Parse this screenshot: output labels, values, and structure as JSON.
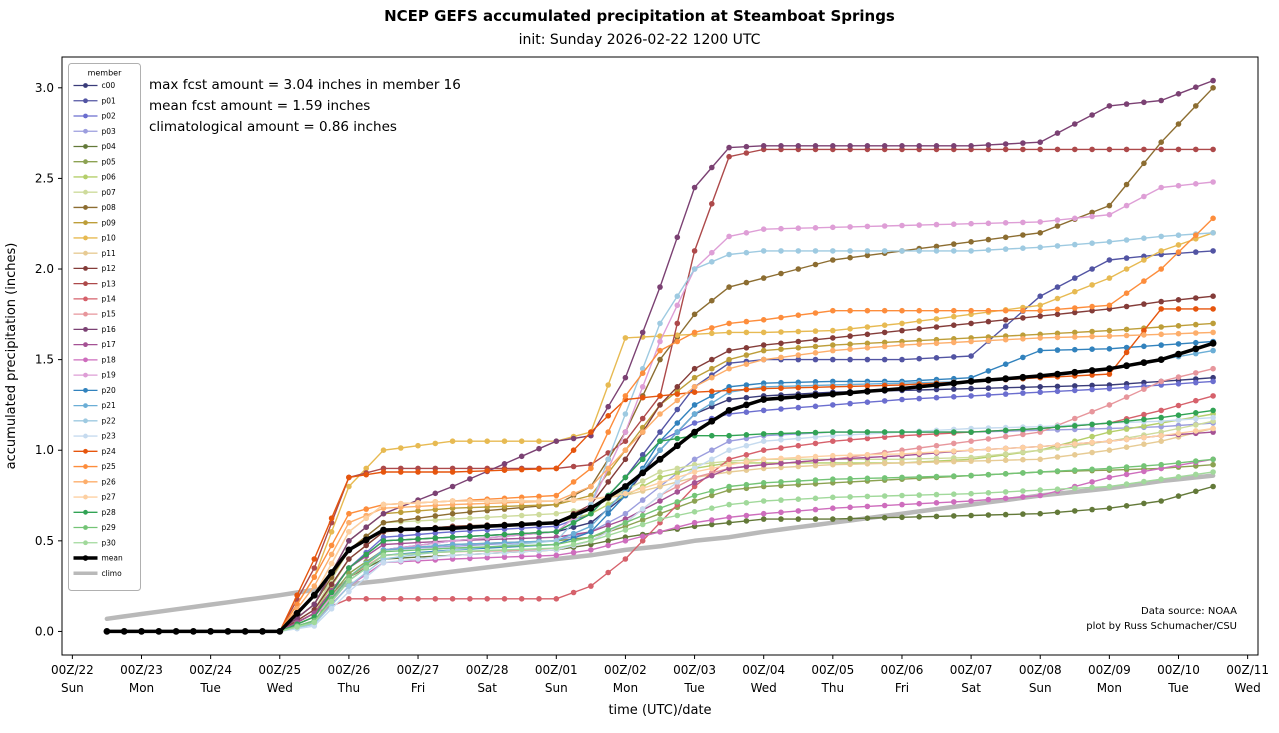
{
  "title": "NCEP GEFS accumulated precipitation at Steamboat Springs",
  "subtitle": "init: Sunday 2026-02-22 1200 UTC",
  "annotations": {
    "max": "max fcst amount = 3.04 inches in member 16",
    "mean": "mean fcst amount = 1.59 inches",
    "climo": "climatological amount = 0.86 inches"
  },
  "source": {
    "line1": "Data source: NOAA",
    "line2": "plot by Russ Schumacher/CSU"
  },
  "chart_data": {
    "type": "line",
    "title": "NCEP GEFS accumulated precipitation at Steamboat Springs",
    "xlabel": "time (UTC)/date",
    "ylabel": "accumulated precipitation (inches)",
    "legend_title": "member",
    "legend_position": "upper left",
    "grid": false,
    "x_unit": "days since 2026-02-22 00Z",
    "xlim": [
      -0.15,
      17.15
    ],
    "ylim": [
      -0.13,
      3.17
    ],
    "y_ticks": [
      0.0,
      0.5,
      1.0,
      1.5,
      2.0,
      2.5,
      3.0
    ],
    "x_ticks": [
      {
        "t": 0,
        "label": "00Z/22",
        "day": "Sun"
      },
      {
        "t": 1,
        "label": "00Z/23",
        "day": "Mon"
      },
      {
        "t": 2,
        "label": "00Z/24",
        "day": "Tue"
      },
      {
        "t": 3,
        "label": "00Z/25",
        "day": "Wed"
      },
      {
        "t": 4,
        "label": "00Z/26",
        "day": "Thu"
      },
      {
        "t": 5,
        "label": "00Z/27",
        "day": "Fri"
      },
      {
        "t": 6,
        "label": "00Z/28",
        "day": "Sat"
      },
      {
        "t": 7,
        "label": "00Z/01",
        "day": "Sun"
      },
      {
        "t": 8,
        "label": "00Z/02",
        "day": "Mon"
      },
      {
        "t": 9,
        "label": "00Z/03",
        "day": "Tue"
      },
      {
        "t": 10,
        "label": "00Z/04",
        "day": "Wed"
      },
      {
        "t": 11,
        "label": "00Z/05",
        "day": "Thu"
      },
      {
        "t": 12,
        "label": "00Z/06",
        "day": "Fri"
      },
      {
        "t": 13,
        "label": "00Z/07",
        "day": "Sat"
      },
      {
        "t": 14,
        "label": "00Z/08",
        "day": "Sun"
      },
      {
        "t": 15,
        "label": "00Z/09",
        "day": "Mon"
      },
      {
        "t": 16,
        "label": "00Z/10",
        "day": "Tue"
      },
      {
        "t": 17,
        "label": "00Z/11",
        "day": "Wed"
      }
    ],
    "marker_interval_days": 0.25,
    "breakpoint_times": [
      0.5,
      3,
      3.5,
      4,
      4.5,
      5.5,
      7,
      7.5,
      8,
      8.5,
      9,
      9.5,
      10,
      11,
      12,
      13,
      14,
      15,
      15.75,
      16.5
    ],
    "series": [
      {
        "name": "c00",
        "color": "#393b79",
        "values": [
          0,
          0,
          0.1,
          0.35,
          0.5,
          0.52,
          0.55,
          0.6,
          0.75,
          1.0,
          1.2,
          1.28,
          1.3,
          1.32,
          1.33,
          1.34,
          1.35,
          1.36,
          1.38,
          1.4
        ]
      },
      {
        "name": "p01",
        "color": "#5254a3",
        "values": [
          0,
          0,
          0.05,
          0.3,
          0.45,
          0.5,
          0.55,
          0.65,
          0.85,
          1.1,
          1.35,
          1.48,
          1.5,
          1.5,
          1.5,
          1.52,
          1.85,
          2.05,
          2.08,
          2.1
        ]
      },
      {
        "name": "p02",
        "color": "#6b6ecf",
        "values": [
          0,
          0,
          0.08,
          0.35,
          0.52,
          0.55,
          0.58,
          0.65,
          0.85,
          1.05,
          1.15,
          1.2,
          1.22,
          1.25,
          1.28,
          1.3,
          1.32,
          1.34,
          1.36,
          1.38
        ]
      },
      {
        "name": "p03",
        "color": "#9c9ede",
        "values": [
          0,
          0,
          0.05,
          0.3,
          0.45,
          0.47,
          0.5,
          0.55,
          0.65,
          0.8,
          0.95,
          1.05,
          1.08,
          1.1,
          1.1,
          1.1,
          1.11,
          1.12,
          1.13,
          1.15
        ]
      },
      {
        "name": "p04",
        "color": "#637939",
        "values": [
          0,
          0,
          0.1,
          0.3,
          0.4,
          0.42,
          0.45,
          0.48,
          0.52,
          0.55,
          0.58,
          0.6,
          0.62,
          0.62,
          0.63,
          0.64,
          0.65,
          0.68,
          0.72,
          0.8
        ]
      },
      {
        "name": "p05",
        "color": "#8ca252",
        "values": [
          0,
          0,
          0.08,
          0.32,
          0.45,
          0.48,
          0.5,
          0.52,
          0.58,
          0.65,
          0.72,
          0.78,
          0.8,
          0.82,
          0.84,
          0.86,
          0.88,
          0.89,
          0.9,
          0.92
        ]
      },
      {
        "name": "p06",
        "color": "#b5cf6b",
        "values": [
          0,
          0,
          0.1,
          0.4,
          0.55,
          0.58,
          0.6,
          0.65,
          0.75,
          0.85,
          0.9,
          0.93,
          0.93,
          0.93,
          0.93,
          0.95,
          1.0,
          1.1,
          1.15,
          1.2
        ]
      },
      {
        "name": "p07",
        "color": "#cedb9c",
        "values": [
          0,
          0,
          0.12,
          0.45,
          0.6,
          0.62,
          0.65,
          0.68,
          0.78,
          0.88,
          0.92,
          0.94,
          0.95,
          0.95,
          0.95,
          0.96,
          1.0,
          1.05,
          1.1,
          1.16
        ]
      },
      {
        "name": "p08",
        "color": "#8c6d31",
        "values": [
          0,
          0,
          0.15,
          0.45,
          0.6,
          0.65,
          0.7,
          0.8,
          1.1,
          1.5,
          1.75,
          1.9,
          1.95,
          2.05,
          2.1,
          2.15,
          2.2,
          2.35,
          2.7,
          3.0
        ]
      },
      {
        "name": "p09",
        "color": "#bd9e39",
        "values": [
          0,
          0,
          0.15,
          0.5,
          0.65,
          0.68,
          0.7,
          0.75,
          1.0,
          1.25,
          1.4,
          1.5,
          1.55,
          1.58,
          1.6,
          1.62,
          1.64,
          1.66,
          1.68,
          1.7
        ]
      },
      {
        "name": "p10",
        "color": "#e7ba52",
        "values": [
          0,
          0,
          0.3,
          0.8,
          1.0,
          1.05,
          1.05,
          1.1,
          1.62,
          1.63,
          1.64,
          1.65,
          1.65,
          1.66,
          1.7,
          1.75,
          1.8,
          1.95,
          2.1,
          2.2
        ]
      },
      {
        "name": "p11",
        "color": "#e7cb94",
        "values": [
          0,
          0,
          0.2,
          0.55,
          0.7,
          0.72,
          0.72,
          0.73,
          0.75,
          0.8,
          0.85,
          0.88,
          0.9,
          0.92,
          0.93,
          0.94,
          0.95,
          1.0,
          1.05,
          1.12
        ]
      },
      {
        "name": "p12",
        "color": "#843c39",
        "values": [
          0,
          0,
          0.12,
          0.4,
          0.55,
          0.58,
          0.6,
          0.7,
          0.95,
          1.25,
          1.45,
          1.55,
          1.58,
          1.62,
          1.66,
          1.7,
          1.74,
          1.78,
          1.82,
          1.85
        ]
      },
      {
        "name": "p13",
        "color": "#ad494a",
        "values": [
          0,
          0,
          0.35,
          0.85,
          0.9,
          0.9,
          0.9,
          0.92,
          1.05,
          1.3,
          2.1,
          2.62,
          2.66,
          2.66,
          2.66,
          2.66,
          2.66,
          2.66,
          2.66,
          2.66
        ]
      },
      {
        "name": "p14",
        "color": "#d6616b",
        "values": [
          0,
          0,
          0.1,
          0.18,
          0.18,
          0.18,
          0.18,
          0.25,
          0.4,
          0.6,
          0.8,
          0.95,
          1.0,
          1.05,
          1.08,
          1.1,
          1.12,
          1.15,
          1.22,
          1.3
        ]
      },
      {
        "name": "p15",
        "color": "#e7969c",
        "values": [
          0,
          0,
          0.08,
          0.3,
          0.42,
          0.44,
          0.45,
          0.5,
          0.6,
          0.75,
          0.85,
          0.9,
          0.92,
          0.95,
          1.0,
          1.05,
          1.1,
          1.25,
          1.38,
          1.45
        ]
      },
      {
        "name": "p16",
        "color": "#7b4173",
        "values": [
          0,
          0,
          0.15,
          0.5,
          0.65,
          0.8,
          1.05,
          1.08,
          1.4,
          1.9,
          2.45,
          2.67,
          2.68,
          2.68,
          2.68,
          2.68,
          2.7,
          2.9,
          2.93,
          3.04
        ]
      },
      {
        "name": "p17",
        "color": "#a55194",
        "values": [
          0,
          0,
          0.1,
          0.35,
          0.48,
          0.5,
          0.52,
          0.55,
          0.62,
          0.72,
          0.82,
          0.9,
          0.92,
          0.95,
          0.97,
          1.0,
          1.02,
          1.05,
          1.08,
          1.1
        ]
      },
      {
        "name": "p18",
        "color": "#ce6dbd",
        "values": [
          0,
          0,
          0.05,
          0.25,
          0.38,
          0.4,
          0.42,
          0.45,
          0.5,
          0.55,
          0.6,
          0.63,
          0.65,
          0.68,
          0.7,
          0.72,
          0.75,
          0.85,
          0.9,
          0.95
        ]
      },
      {
        "name": "p19",
        "color": "#de9ed6",
        "values": [
          0,
          0,
          0.08,
          0.3,
          0.45,
          0.5,
          0.55,
          0.7,
          1.1,
          1.6,
          2.0,
          2.18,
          2.22,
          2.23,
          2.24,
          2.25,
          2.26,
          2.3,
          2.45,
          2.48
        ]
      },
      {
        "name": "p20",
        "color": "#3182bd",
        "values": [
          0,
          0,
          0.05,
          0.28,
          0.42,
          0.45,
          0.48,
          0.55,
          0.75,
          1.05,
          1.25,
          1.35,
          1.37,
          1.38,
          1.38,
          1.4,
          1.55,
          1.56,
          1.58,
          1.6
        ]
      },
      {
        "name": "p21",
        "color": "#6baed6",
        "values": [
          0,
          0,
          0.06,
          0.3,
          0.45,
          0.48,
          0.5,
          0.58,
          0.78,
          1.0,
          1.2,
          1.32,
          1.35,
          1.36,
          1.37,
          1.38,
          1.4,
          1.45,
          1.5,
          1.55
        ]
      },
      {
        "name": "p22",
        "color": "#9ecae1",
        "values": [
          0,
          0,
          0.04,
          0.25,
          0.4,
          0.45,
          0.5,
          0.7,
          1.2,
          1.7,
          2.0,
          2.08,
          2.1,
          2.1,
          2.1,
          2.1,
          2.12,
          2.15,
          2.18,
          2.2
        ]
      },
      {
        "name": "p23",
        "color": "#c6dbef",
        "values": [
          0,
          0,
          0.03,
          0.22,
          0.38,
          0.42,
          0.45,
          0.5,
          0.6,
          0.75,
          0.9,
          1.0,
          1.05,
          1.08,
          1.1,
          1.12,
          1.13,
          1.15,
          1.16,
          1.18
        ]
      },
      {
        "name": "p24",
        "color": "#e6550d",
        "values": [
          0,
          0,
          0.4,
          0.85,
          0.88,
          0.88,
          0.9,
          1.1,
          1.28,
          1.3,
          1.32,
          1.33,
          1.34,
          1.35,
          1.36,
          1.38,
          1.4,
          1.42,
          1.78,
          1.78
        ]
      },
      {
        "name": "p25",
        "color": "#fd8d3c",
        "values": [
          0,
          0,
          0.3,
          0.65,
          0.7,
          0.72,
          0.75,
          0.9,
          1.3,
          1.55,
          1.65,
          1.7,
          1.72,
          1.77,
          1.77,
          1.77,
          1.77,
          1.8,
          2.0,
          2.28
        ]
      },
      {
        "name": "p26",
        "color": "#fdae6b",
        "values": [
          0,
          0,
          0.25,
          0.6,
          0.68,
          0.7,
          0.72,
          0.8,
          1.0,
          1.2,
          1.35,
          1.45,
          1.5,
          1.55,
          1.58,
          1.6,
          1.62,
          1.63,
          1.64,
          1.65
        ]
      },
      {
        "name": "p27",
        "color": "#fdd0a2",
        "values": [
          0,
          0,
          0.2,
          0.55,
          0.7,
          0.72,
          0.72,
          0.73,
          0.76,
          0.82,
          0.88,
          0.92,
          0.95,
          0.97,
          0.98,
          1.0,
          1.02,
          1.05,
          1.08,
          1.12
        ]
      },
      {
        "name": "p28",
        "color": "#31a354",
        "values": [
          0,
          0,
          0.08,
          0.35,
          0.5,
          0.52,
          0.55,
          0.65,
          0.85,
          1.05,
          1.08,
          1.08,
          1.09,
          1.1,
          1.1,
          1.1,
          1.12,
          1.15,
          1.18,
          1.22
        ]
      },
      {
        "name": "p29",
        "color": "#74c476",
        "values": [
          0,
          0,
          0.06,
          0.3,
          0.44,
          0.46,
          0.48,
          0.52,
          0.6,
          0.68,
          0.75,
          0.8,
          0.82,
          0.84,
          0.85,
          0.86,
          0.88,
          0.9,
          0.92,
          0.95
        ]
      },
      {
        "name": "p30",
        "color": "#a1d99b",
        "values": [
          0,
          0,
          0.05,
          0.28,
          0.42,
          0.44,
          0.46,
          0.5,
          0.56,
          0.62,
          0.66,
          0.7,
          0.72,
          0.74,
          0.75,
          0.76,
          0.78,
          0.8,
          0.84,
          0.88
        ]
      }
    ],
    "mean": {
      "name": "mean",
      "color": "#000000",
      "values": [
        0,
        0,
        0.2,
        0.45,
        0.56,
        0.57,
        0.6,
        0.68,
        0.8,
        0.95,
        1.1,
        1.22,
        1.28,
        1.31,
        1.34,
        1.38,
        1.41,
        1.45,
        1.5,
        1.59
      ]
    },
    "climo": {
      "name": "climo",
      "color": "#b9b9b9",
      "values": [
        0.07,
        0.2,
        0.23,
        0.26,
        0.28,
        0.33,
        0.4,
        0.42,
        0.45,
        0.47,
        0.5,
        0.52,
        0.55,
        0.6,
        0.65,
        0.7,
        0.75,
        0.79,
        0.83,
        0.86
      ]
    }
  }
}
